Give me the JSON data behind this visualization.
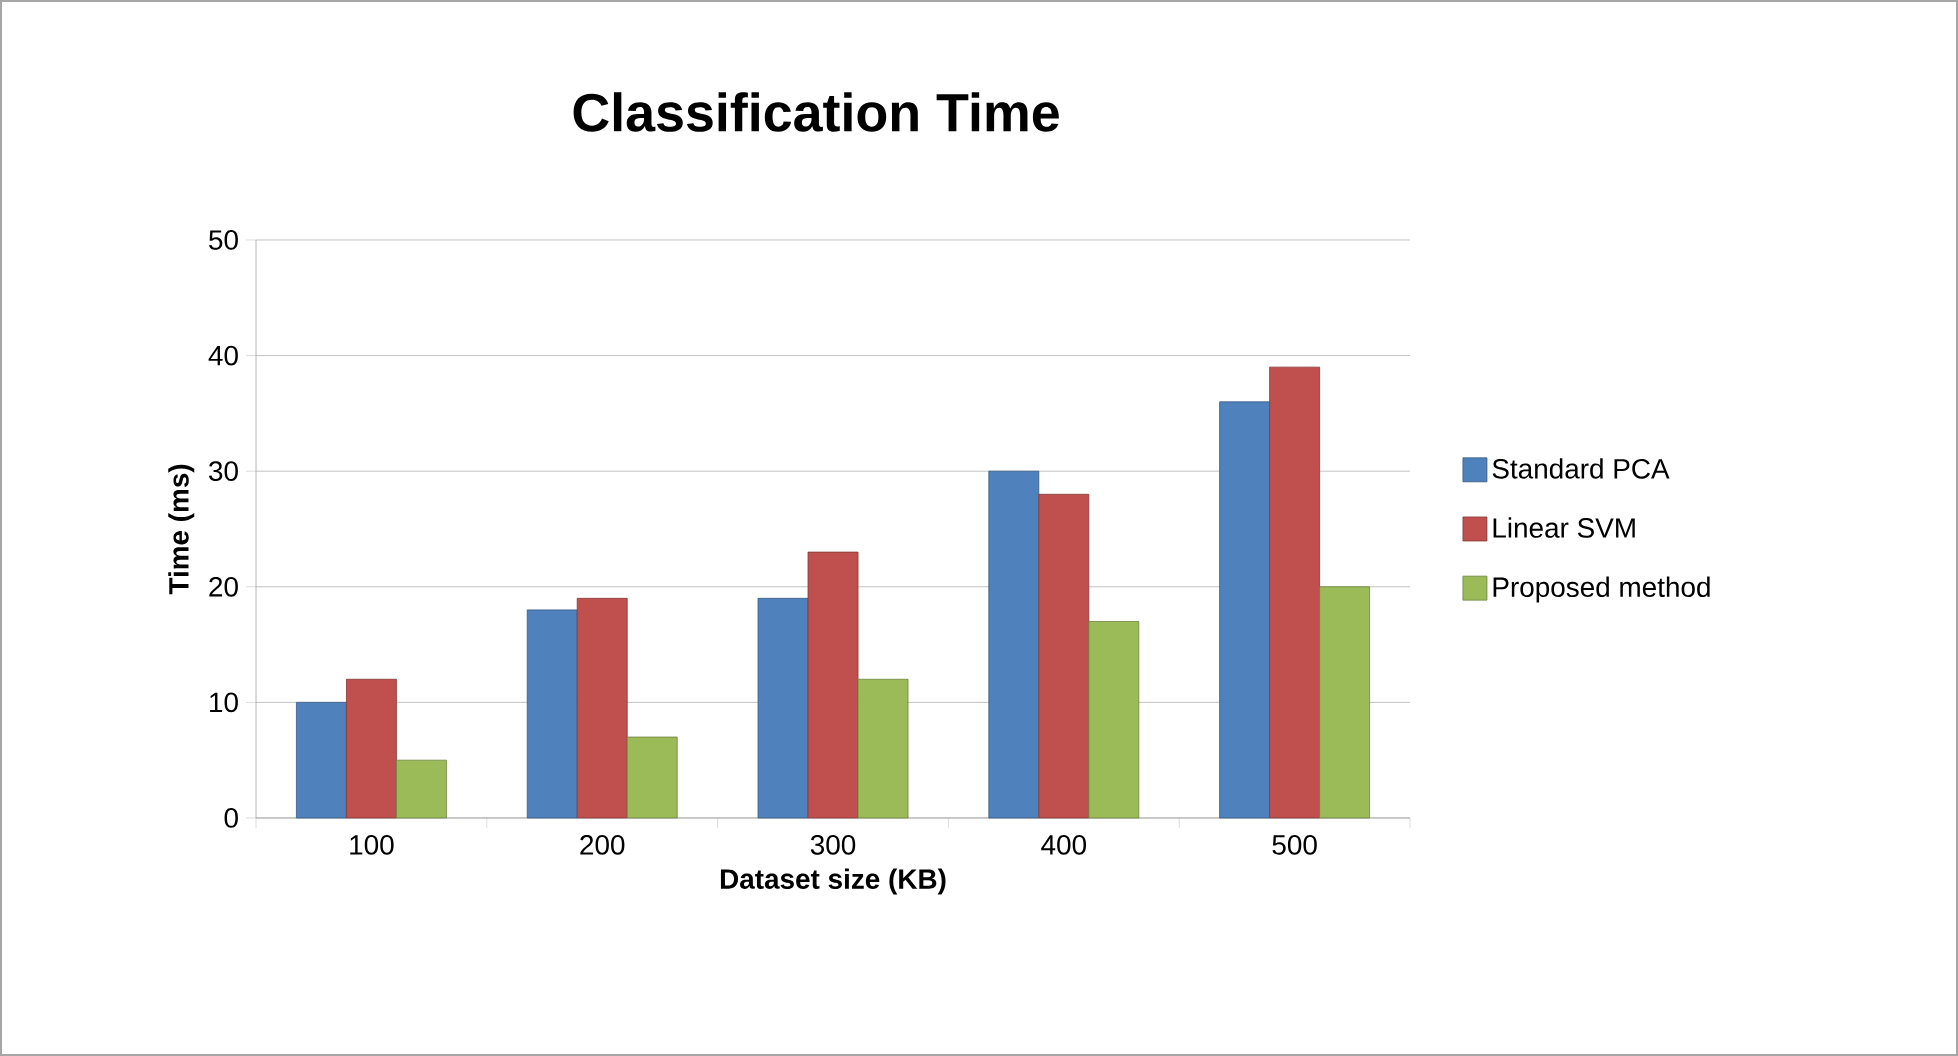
{
  "chart_data": {
    "type": "bar",
    "title": "Classification Time",
    "xlabel": "Dataset size (KB)",
    "ylabel": "Time (ms)",
    "categories": [
      "100",
      "200",
      "300",
      "400",
      "500"
    ],
    "series": [
      {
        "name": "Standard PCA",
        "color": "#4f81bd",
        "values": [
          10,
          18,
          19,
          30,
          36
        ]
      },
      {
        "name": "Linear SVM",
        "color": "#c0504d",
        "values": [
          12,
          19,
          23,
          28,
          39
        ]
      },
      {
        "name": "Proposed method",
        "color": "#9bbb59",
        "values": [
          5,
          7,
          12,
          17,
          20
        ]
      }
    ],
    "ylim": [
      0,
      50
    ],
    "yticks": [
      0,
      10,
      20,
      30,
      40,
      50
    ],
    "grid": "y",
    "legend": "right"
  }
}
